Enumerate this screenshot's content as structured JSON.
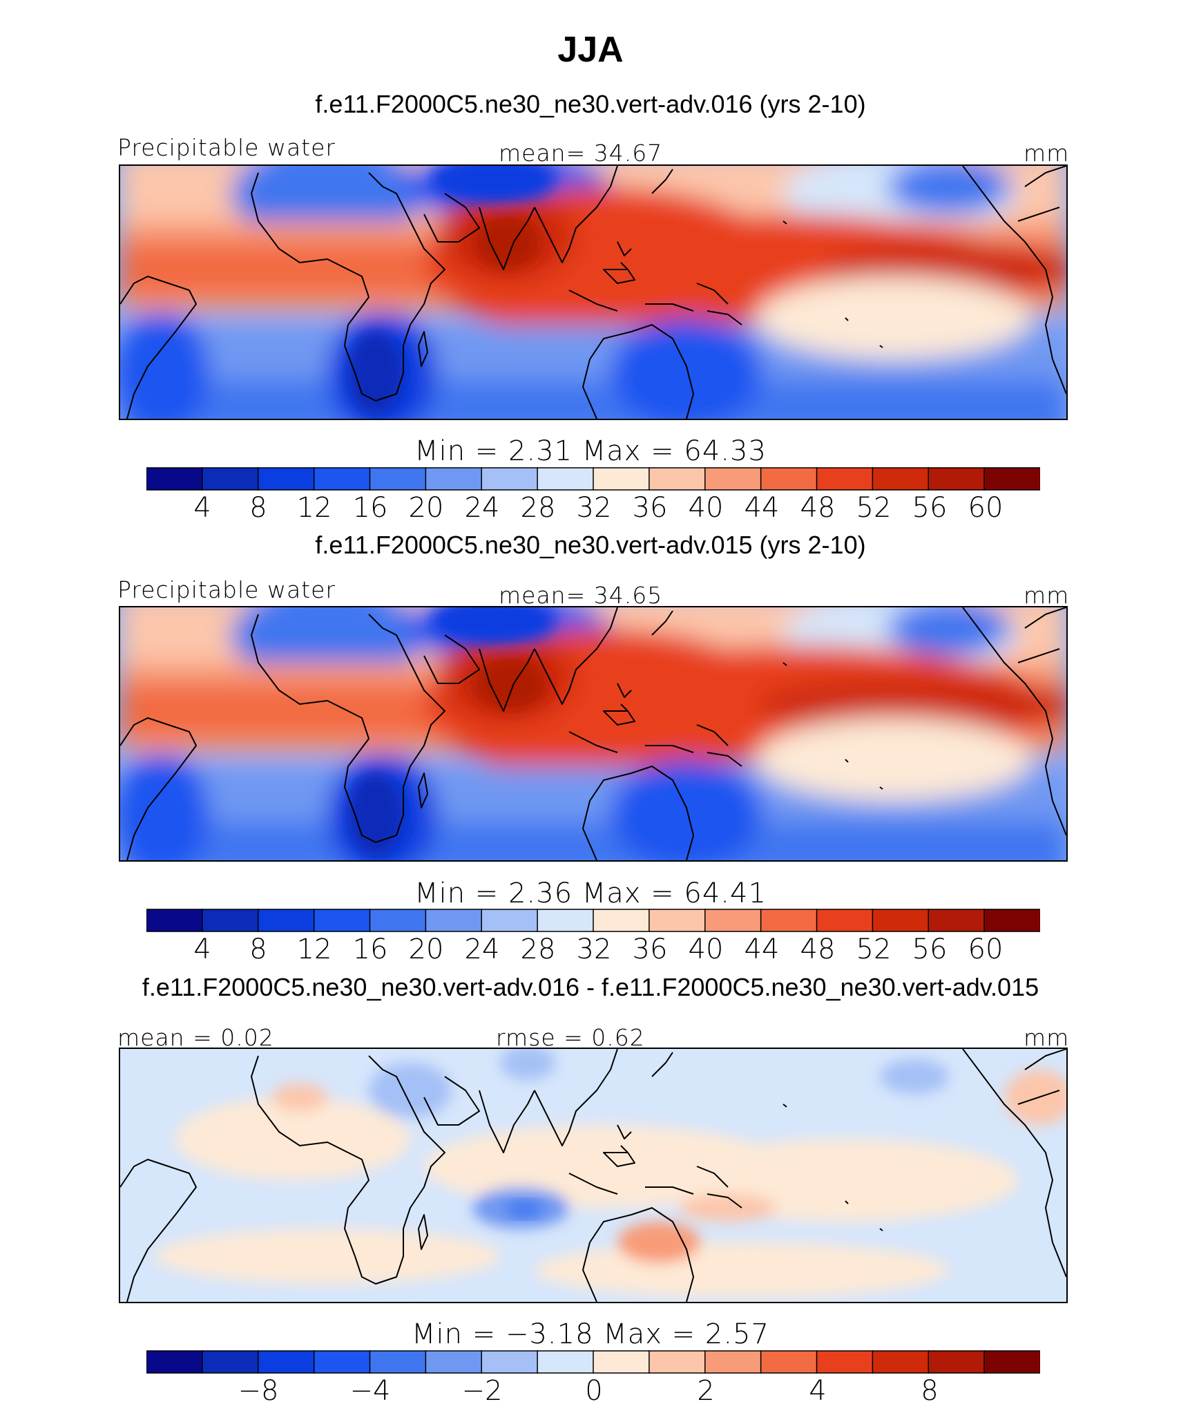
{
  "title": "JJA",
  "panels": [
    {
      "case": "f.e11.F2000C5.ne30_ne30.vert-adv.016 (yrs 2-10)",
      "left_label": "Precipitable water",
      "center_label": "mean=   34.67",
      "units": "mm",
      "minmax": "Min  =     2.31  Max  =    64.33",
      "type": "abs",
      "colorbar": {
        "labels": [
          "4",
          "8",
          "12",
          "16",
          "20",
          "24",
          "28",
          "32",
          "36",
          "40",
          "44",
          "48",
          "52",
          "56",
          "60"
        ]
      }
    },
    {
      "case": "f.e11.F2000C5.ne30_ne30.vert-adv.015 (yrs 2-10)",
      "left_label": "Precipitable water",
      "center_label": "mean=   34.65",
      "units": "mm",
      "minmax": "Min  =     2.36  Max  =    64.41",
      "type": "abs",
      "colorbar": {
        "labels": [
          "4",
          "8",
          "12",
          "16",
          "20",
          "24",
          "28",
          "32",
          "36",
          "40",
          "44",
          "48",
          "52",
          "56",
          "60"
        ]
      }
    },
    {
      "case": "f.e11.F2000C5.ne30_ne30.vert-adv.016 - f.e11.F2000C5.ne30_ne30.vert-adv.015",
      "left_label": "mean =     0.02",
      "center_label": "rmse  =     0.62",
      "units": "mm",
      "minmax": "Min  =   −3.18  Max  =      2.57",
      "type": "diff",
      "colorbar": {
        "labels": [
          "−8",
          "−4",
          "−2",
          "0",
          "2",
          "4",
          "8"
        ]
      }
    }
  ],
  "colors": [
    "#08088a",
    "#0a2cb8",
    "#0b3ee0",
    "#1c55f0",
    "#3f76f0",
    "#6f98f2",
    "#a4c0f6",
    "#d6e6fb",
    "#fde9d6",
    "#fcc6ab",
    "#f89b78",
    "#f26b43",
    "#e8401c",
    "#cf2a0a",
    "#b01a06",
    "#7d0303"
  ]
}
